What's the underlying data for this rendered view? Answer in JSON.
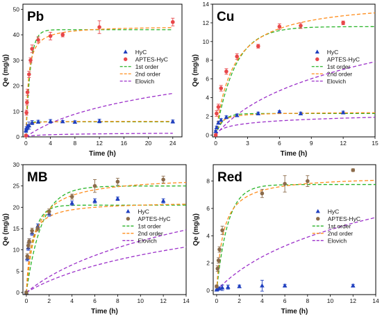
{
  "chart_data": [
    {
      "type": "scatter",
      "title": "Pb",
      "xlabel": "Time (h)",
      "ylabel": "Qe (mg/g)",
      "xlim": [
        -0.5,
        25.5
      ],
      "ylim": [
        0,
        52
      ],
      "xticks": [
        "0",
        "4",
        "8",
        "12",
        "16",
        "20",
        "24"
      ],
      "yticks": [
        "0",
        "10",
        "20",
        "30",
        "40",
        "50"
      ],
      "legend_position": "right-middle",
      "series": [
        {
          "name": "HyC",
          "kind": "points",
          "marker": "triangle",
          "color": "#1f3fbf",
          "x": [
            0,
            0.083,
            0.25,
            0.5,
            1,
            2,
            4,
            6,
            8,
            12,
            24
          ],
          "y": [
            2.5,
            3.3,
            4.1,
            4.4,
            5.6,
            5.9,
            6.1,
            6.0,
            5.8,
            6.2,
            6.0
          ],
          "err": [
            0.8,
            0.7,
            0.8,
            1.4,
            0.8,
            0.6,
            0.7,
            0.4,
            0.5,
            0.7,
            0.6
          ]
        },
        {
          "name": "APTES-HyC",
          "kind": "points",
          "marker": "circle",
          "color": "#e8474a",
          "x": [
            0,
            0.083,
            0.167,
            0.25,
            0.5,
            0.75,
            1,
            2,
            4,
            6,
            12,
            24
          ],
          "y": [
            0.5,
            9.5,
            13.5,
            17.5,
            24.5,
            30,
            34.5,
            38,
            39.5,
            40,
            43,
            45
          ],
          "err": [
            0.5,
            1.0,
            1.0,
            1.2,
            1.2,
            1.0,
            1.5,
            1.2,
            1.5,
            0.8,
            2.5,
            1.5
          ]
        },
        {
          "name": "1st order",
          "kind": "curve",
          "color": "#27b427",
          "model": "first",
          "params": [
            [
              42,
              1.4
            ],
            [
              5.9,
              3.0
            ]
          ]
        },
        {
          "name": "2nd order",
          "kind": "curve",
          "color": "#ff8c1a",
          "model": "second",
          "params": [
            [
              43.5,
              0.06
            ],
            [
              6.1,
              1.2
            ]
          ]
        },
        {
          "name": "Elovich",
          "kind": "curve",
          "color": "#9b2fc9",
          "model": "elovich",
          "params": [
            [
              10.8,
              0.16
            ],
            [
              0.33,
              3.0
            ]
          ]
        }
      ]
    },
    {
      "type": "scatter",
      "title": "Cu",
      "xlabel": "Time (h)",
      "ylabel": "Qe (mg/g)",
      "xlim": [
        -0.3,
        15
      ],
      "ylim": [
        -0.2,
        14
      ],
      "xticks": [
        "0",
        "3",
        "6",
        "9",
        "12",
        "15"
      ],
      "yticks": [
        "0",
        "2",
        "4",
        "6",
        "8",
        "10",
        "12",
        "14"
      ],
      "legend_position": "right-middle",
      "series": [
        {
          "name": "HyC",
          "kind": "points",
          "marker": "triangle",
          "color": "#1f3fbf",
          "x": [
            0,
            0.083,
            0.25,
            0.5,
            1,
            2,
            4,
            6,
            8,
            12
          ],
          "y": [
            0.4,
            0.8,
            1.3,
            1.6,
            1.9,
            2.1,
            2.3,
            2.5,
            2.3,
            2.4
          ],
          "err": [
            0.1,
            0.15,
            0.15,
            0.15,
            0.15,
            0.15,
            0.15,
            0.1,
            0.15,
            0.15
          ]
        },
        {
          "name": "APTES-HyC",
          "kind": "points",
          "marker": "circle",
          "color": "#e8474a",
          "x": [
            0,
            0.083,
            0.25,
            0.5,
            1,
            2,
            4,
            6,
            8,
            12
          ],
          "y": [
            0,
            2.3,
            3.0,
            5.0,
            6.8,
            8.4,
            9.5,
            11.6,
            11.7,
            12.0
          ],
          "err": [
            0.1,
            0.3,
            0.3,
            0.3,
            0.3,
            0.3,
            0.2,
            0.3,
            0.3,
            0.2
          ]
        },
        {
          "name": "1st order",
          "kind": "curve",
          "color": "#27b427",
          "model": "first",
          "params": [
            [
              11.6,
              0.55
            ],
            [
              2.3,
              1.5
            ]
          ]
        },
        {
          "name": "2nd order",
          "kind": "curve",
          "color": "#ff8c1a",
          "model": "second",
          "params": [
            [
              14.5,
              0.042
            ],
            [
              2.45,
              1.0
            ]
          ]
        },
        {
          "name": "Elovich",
          "kind": "curve",
          "color": "#9b2fc9",
          "model": "elovich",
          "params": [
            [
              4.6,
              0.3
            ],
            [
              0.42,
              6.0
            ]
          ]
        }
      ]
    },
    {
      "type": "scatter",
      "title": "MB",
      "xlabel": "Time (h)",
      "ylabel": "Qe (mg/g)",
      "xlim": [
        -0.3,
        14
      ],
      "ylim": [
        -0.5,
        30
      ],
      "xticks": [
        "0",
        "2",
        "4",
        "6",
        "8",
        "10",
        "12",
        "14"
      ],
      "yticks": [
        "0",
        "5",
        "10",
        "15",
        "20",
        "25",
        "30"
      ],
      "legend_position": "right-middle",
      "series": [
        {
          "name": "HyC",
          "kind": "points",
          "marker": "triangle",
          "color": "#1f3fbf",
          "x": [
            0,
            0.083,
            0.167,
            0.25,
            0.5,
            1,
            2,
            4,
            6,
            8,
            12
          ],
          "y": [
            0,
            8.0,
            10.5,
            12.0,
            14.0,
            15.5,
            18.5,
            21.0,
            21.5,
            22.0,
            21.5
          ],
          "err": [
            0.3,
            0.6,
            0.6,
            0.6,
            0.6,
            0.6,
            0.6,
            0.5,
            0.5,
            0.4,
            0.5
          ]
        },
        {
          "name": "APTES-HyC",
          "kind": "points",
          "marker": "circle",
          "color": "#8b6b4a",
          "x": [
            0,
            0.083,
            0.167,
            0.25,
            0.5,
            1,
            2,
            4,
            6,
            8,
            12
          ],
          "y": [
            0,
            8.5,
            11.0,
            12.0,
            14.5,
            15.0,
            19.0,
            22.5,
            25.0,
            26.0,
            26.5
          ],
          "err": [
            0.3,
            0.6,
            0.6,
            0.6,
            0.6,
            0.6,
            0.6,
            0.6,
            1.5,
            0.8,
            0.8
          ]
        },
        {
          "name": "1st order",
          "kind": "curve",
          "color": "#27b427",
          "model": "first",
          "params": [
            [
              25.0,
              0.75
            ],
            [
              20.5,
              1.5
            ]
          ]
        },
        {
          "name": "2nd order",
          "kind": "curve",
          "color": "#ff8c1a",
          "model": "second",
          "params": [
            [
              27.3,
              0.046
            ],
            [
              21.3,
              0.12
            ]
          ]
        },
        {
          "name": "Elovich",
          "kind": "curve",
          "color": "#9b2fc9",
          "model": "elovich",
          "params": [
            [
              11.0,
              0.2
            ],
            [
              8.0,
              0.2
            ]
          ]
        }
      ]
    },
    {
      "type": "scatter",
      "title": "Red",
      "xlabel": "Time (h)",
      "ylabel": "Qe (mg/g)",
      "xlim": [
        -0.3,
        14
      ],
      "ylim": [
        -0.3,
        9.2
      ],
      "xticks": [
        "0",
        "2",
        "4",
        "6",
        "8",
        "10",
        "12",
        "14"
      ],
      "yticks": [
        "0",
        "2",
        "4",
        "6",
        "8"
      ],
      "legend_position": "right-middle",
      "series": [
        {
          "name": "HyC",
          "kind": "points",
          "marker": "triangle",
          "color": "#1f3fbf",
          "x": [
            0,
            0.083,
            0.25,
            0.5,
            1,
            2,
            4,
            6,
            12
          ],
          "y": [
            0.05,
            0.1,
            0.15,
            0.2,
            0.25,
            0.3,
            0.35,
            0.35,
            0.35
          ],
          "err": [
            0.05,
            0.1,
            0.1,
            0.2,
            0.15,
            0.1,
            0.4,
            0.1,
            0.1
          ]
        },
        {
          "name": "APTES-HyC",
          "kind": "points",
          "marker": "circle",
          "color": "#8b6b4a",
          "x": [
            0,
            0.083,
            0.167,
            0.25,
            0.5,
            4,
            6,
            8,
            12
          ],
          "y": [
            0.3,
            1.6,
            2.2,
            3.0,
            4.4,
            7.1,
            7.8,
            8.0,
            8.8
          ],
          "err": [
            0.1,
            0.2,
            0.2,
            0.2,
            0.3,
            0.3,
            0.6,
            0.4,
            0.1
          ]
        },
        {
          "name": "1st order",
          "kind": "curve",
          "color": "#27b427",
          "model": "first",
          "params": [
            [
              7.75,
              1.0
            ]
          ]
        },
        {
          "name": "2nd order",
          "kind": "curve",
          "color": "#ff8c1a",
          "model": "second",
          "params": [
            [
              8.4,
              0.2
            ]
          ]
        },
        {
          "name": "Elovich",
          "kind": "curve",
          "color": "#9b2fc9",
          "model": "elovich",
          "params": [
            [
              3.55,
              0.25
            ]
          ]
        }
      ]
    }
  ]
}
